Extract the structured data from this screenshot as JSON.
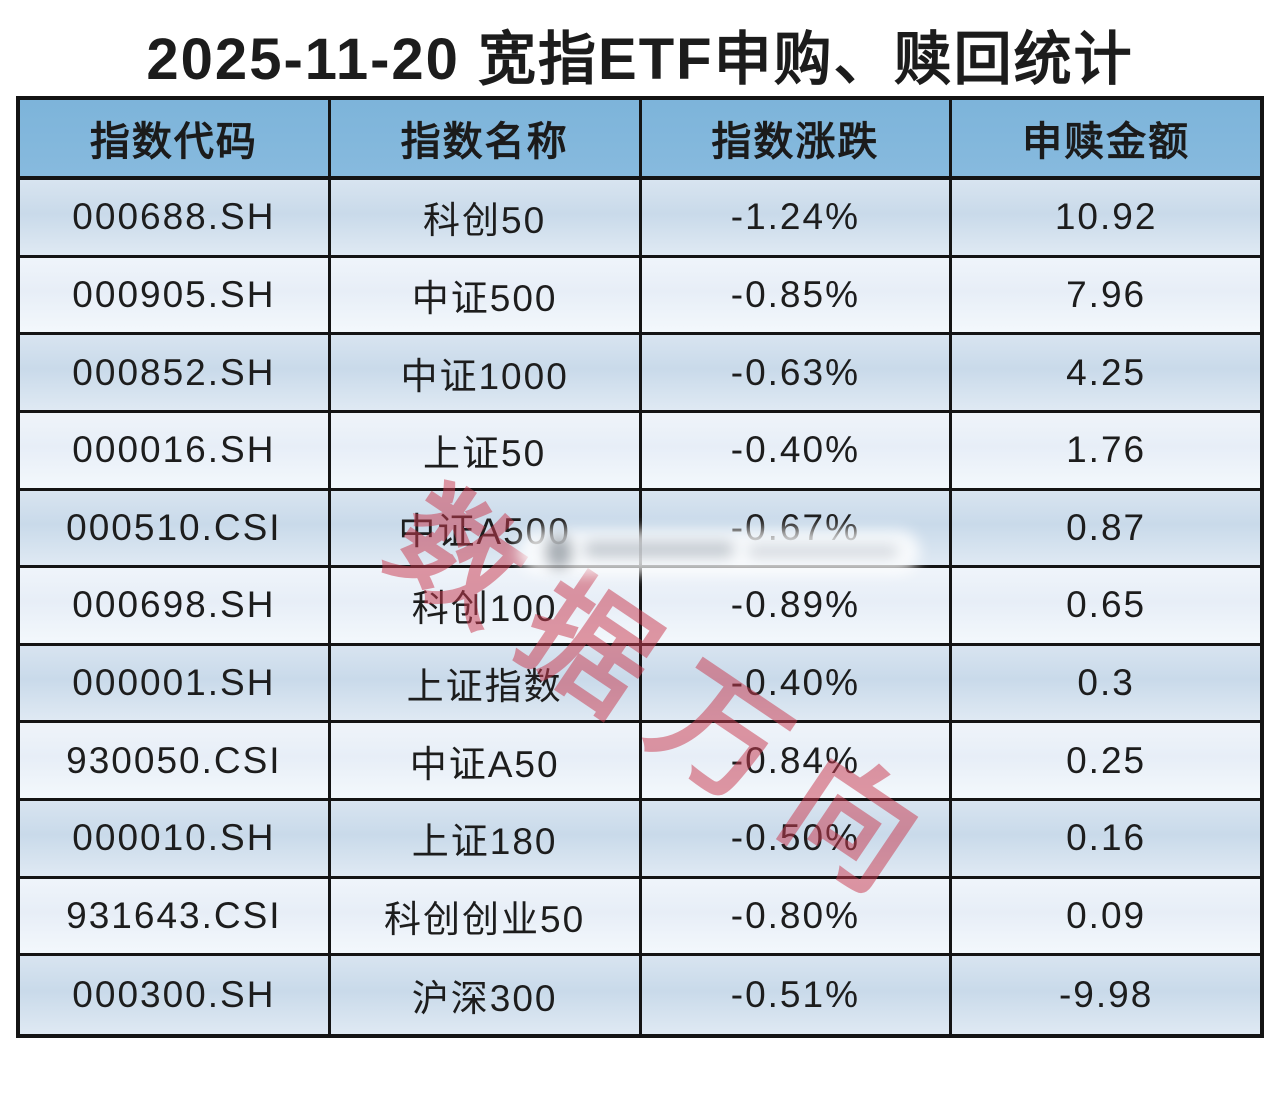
{
  "title": "2025-11-20 宽指ETF申购、赎回统计",
  "table": {
    "columns": [
      "指数代码",
      "指数名称",
      "指数涨跌",
      "申赎金额"
    ],
    "rows": [
      {
        "code": "000688.SH",
        "name": "科创50",
        "change": "-1.24%",
        "amount": "10.92"
      },
      {
        "code": "000905.SH",
        "name": "中证500",
        "change": "-0.85%",
        "amount": "7.96"
      },
      {
        "code": "000852.SH",
        "name": "中证1000",
        "change": "-0.63%",
        "amount": "4.25"
      },
      {
        "code": "000016.SH",
        "name": "上证50",
        "change": "-0.40%",
        "amount": "1.76"
      },
      {
        "code": "000510.CSI",
        "name": "中证A500",
        "change": "-0.67%",
        "amount": "0.87"
      },
      {
        "code": "000698.SH",
        "name": "科创100",
        "change": "-0.89%",
        "amount": "0.65"
      },
      {
        "code": "000001.SH",
        "name": "上证指数",
        "change": "-0.40%",
        "amount": "0.3"
      },
      {
        "code": "930050.CSI",
        "name": "中证A50",
        "change": "-0.84%",
        "amount": "0.25"
      },
      {
        "code": "000010.SH",
        "name": "上证180",
        "change": "-0.50%",
        "amount": "0.16"
      },
      {
        "code": "931643.CSI",
        "name": "科创创业50",
        "change": "-0.80%",
        "amount": "0.09"
      },
      {
        "code": "000300.SH",
        "name": "沪深300",
        "change": "-0.51%",
        "amount": "-9.98"
      }
    ]
  },
  "watermark": {
    "text": "数据万向",
    "color": "#c93b50"
  },
  "colors": {
    "header_bg": "#82b8dc",
    "row_odd": "#cfdeec",
    "row_even": "#eaf1f8",
    "border": "#141414",
    "title_text": "#1c1c1c",
    "watermark_red": "#c93b50"
  },
  "chart_data": {
    "type": "table",
    "title": "2025-11-20 宽指ETF申购、赎回统计",
    "columns": [
      "指数代码",
      "指数名称",
      "指数涨跌",
      "申赎金额"
    ],
    "rows": [
      [
        "000688.SH",
        "科创50",
        "-1.24%",
        10.92
      ],
      [
        "000905.SH",
        "中证500",
        "-0.85%",
        7.96
      ],
      [
        "000852.SH",
        "中证1000",
        "-0.63%",
        4.25
      ],
      [
        "000016.SH",
        "上证50",
        "-0.40%",
        1.76
      ],
      [
        "000510.CSI",
        "中证A500",
        "-0.67%",
        0.87
      ],
      [
        "000698.SH",
        "科创100",
        "-0.89%",
        0.65
      ],
      [
        "000001.SH",
        "上证指数",
        "-0.40%",
        0.3
      ],
      [
        "930050.CSI",
        "中证A50",
        "-0.84%",
        0.25
      ],
      [
        "000010.SH",
        "上证180",
        "-0.50%",
        0.16
      ],
      [
        "931643.CSI",
        "科创创业50",
        "-0.80%",
        0.09
      ],
      [
        "000300.SH",
        "沪深300",
        "-0.51%",
        -9.98
      ]
    ]
  }
}
